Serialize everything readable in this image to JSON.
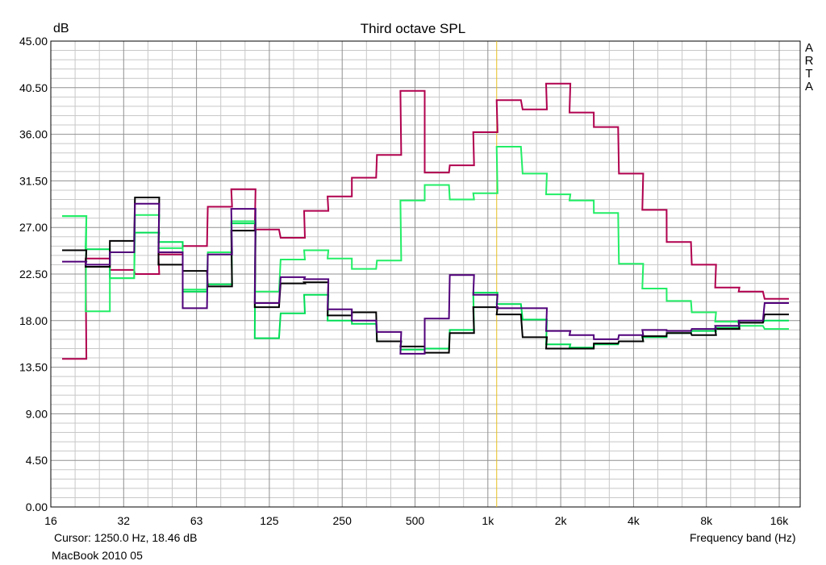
{
  "chart_data": {
    "type": "line",
    "title": "Third octave SPL",
    "ylabel": "dB",
    "xlabel": "Frequency band (Hz)",
    "ylim": [
      0,
      45
    ],
    "yticks": [
      "0.00",
      "4.50",
      "9.00",
      "13.50",
      "18.00",
      "22.50",
      "27.00",
      "31.50",
      "36.00",
      "40.50",
      "45.00"
    ],
    "xscale": "log",
    "xlim": [
      16,
      20000
    ],
    "xticks": [
      "16",
      "32",
      "63",
      "125",
      "250",
      "500",
      "1k",
      "2k",
      "4k",
      "8k",
      "16k"
    ],
    "grid": true,
    "cursor_x_hz": 1250,
    "bands": [
      20,
      25,
      31.5,
      40,
      50,
      63,
      80,
      100,
      125,
      160,
      200,
      250,
      315,
      400,
      500,
      630,
      800,
      1000,
      1250,
      1600,
      2000,
      2500,
      3150,
      4000,
      5000,
      6300,
      8000,
      10000,
      12500,
      16000
    ],
    "series": [
      {
        "color": "#b0004e",
        "values": [
          14.3,
          24.0,
          22.9,
          22.5,
          24.4,
          25.2,
          29.0,
          30.7,
          26.8,
          26.0,
          28.6,
          30.0,
          31.8,
          34.0,
          40.2,
          32.3,
          33.0,
          36.2,
          39.3,
          38.4,
          40.9,
          38.1,
          36.7,
          32.2,
          28.7,
          25.6,
          23.4,
          21.2,
          20.8,
          20.1
        ]
      },
      {
        "color": "#00dd55",
        "values": [
          28.1,
          24.9,
          22.1,
          26.5,
          25.6,
          20.8,
          21.5,
          27.4,
          16.3,
          18.7,
          20.5,
          18.0,
          17.7,
          16.0,
          15.2,
          15.3,
          17.1,
          20.7,
          19.6,
          18.1,
          15.7,
          15.4,
          15.7,
          16.0,
          16.4,
          16.8,
          17.0,
          17.3,
          17.8,
          18.0
        ]
      },
      {
        "color": "#22ee66",
        "values": [
          28.1,
          18.9,
          22.1,
          28.2,
          25.0,
          21.0,
          24.6,
          27.6,
          20.8,
          23.9,
          24.8,
          24.0,
          23.0,
          23.8,
          29.6,
          31.1,
          29.7,
          30.3,
          34.8,
          32.2,
          30.2,
          29.6,
          28.4,
          23.5,
          21.1,
          19.9,
          18.8,
          17.9,
          17.5,
          17.2
        ]
      },
      {
        "color": "#000000",
        "values": [
          24.8,
          23.2,
          25.7,
          29.9,
          23.4,
          22.8,
          21.3,
          26.7,
          19.3,
          21.6,
          21.7,
          18.5,
          18.8,
          16.0,
          15.5,
          14.9,
          16.8,
          19.3,
          18.6,
          16.4,
          15.3,
          15.3,
          15.8,
          16.0,
          16.5,
          16.8,
          16.6,
          17.2,
          17.8,
          18.6
        ]
      },
      {
        "color": "#50007a",
        "values": [
          23.7,
          23.4,
          24.6,
          29.3,
          24.6,
          19.2,
          24.4,
          28.8,
          19.7,
          22.2,
          22.0,
          19.1,
          18.0,
          16.9,
          14.8,
          18.2,
          22.4,
          20.5,
          19.2,
          19.2,
          17.0,
          16.6,
          16.2,
          16.6,
          17.1,
          17.0,
          17.2,
          17.5,
          18.0,
          19.7
        ]
      }
    ]
  },
  "cursor_text": "Cursor:  1250.0 Hz, 18.46 dB",
  "footer_text": "MacBook 2010 05",
  "brand_letters": [
    "A",
    "R",
    "T",
    "A"
  ]
}
